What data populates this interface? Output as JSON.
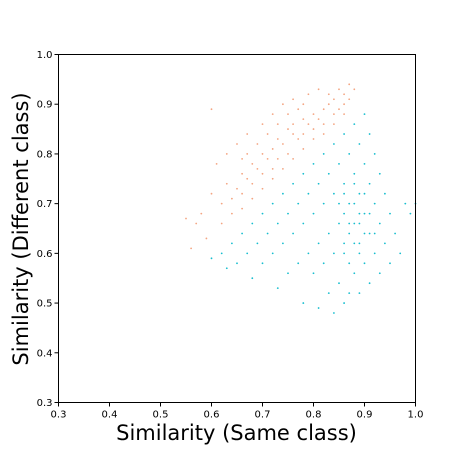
{
  "chart_data": {
    "type": "scatter",
    "title": "",
    "xlabel": "Similarity (Same class)",
    "ylabel": "Similarity (Different class)",
    "xlim": [
      0.3,
      1.0
    ],
    "ylim": [
      0.3,
      1.0
    ],
    "xticks": [
      "0.3",
      "0.4",
      "0.5",
      "0.6",
      "0.7",
      "0.8",
      "0.9",
      "1.0"
    ],
    "yticks": [
      "0.3",
      "0.4",
      "0.5",
      "0.6",
      "0.7",
      "0.8",
      "0.9",
      "1.0"
    ],
    "grid": false,
    "legend": "none",
    "series": [
      {
        "color": "#f4a582",
        "description_points": "dense cloud above the diagonal y = x",
        "points": [
          [
            0.6,
            0.72
          ],
          [
            0.62,
            0.7
          ],
          [
            0.63,
            0.74
          ],
          [
            0.64,
            0.71
          ],
          [
            0.65,
            0.73
          ],
          [
            0.66,
            0.76
          ],
          [
            0.66,
            0.72
          ],
          [
            0.67,
            0.75
          ],
          [
            0.68,
            0.78
          ],
          [
            0.68,
            0.74
          ],
          [
            0.69,
            0.77
          ],
          [
            0.7,
            0.8
          ],
          [
            0.7,
            0.76
          ],
          [
            0.71,
            0.79
          ],
          [
            0.72,
            0.81
          ],
          [
            0.72,
            0.77
          ],
          [
            0.73,
            0.83
          ],
          [
            0.73,
            0.79
          ],
          [
            0.74,
            0.82
          ],
          [
            0.75,
            0.85
          ],
          [
            0.75,
            0.8
          ],
          [
            0.76,
            0.84
          ],
          [
            0.76,
            0.86
          ],
          [
            0.77,
            0.83
          ],
          [
            0.78,
            0.87
          ],
          [
            0.78,
            0.84
          ],
          [
            0.79,
            0.86
          ],
          [
            0.8,
            0.88
          ],
          [
            0.8,
            0.85
          ],
          [
            0.81,
            0.87
          ],
          [
            0.82,
            0.89
          ],
          [
            0.82,
            0.86
          ],
          [
            0.83,
            0.9
          ],
          [
            0.84,
            0.88
          ],
          [
            0.84,
            0.91
          ],
          [
            0.85,
            0.89
          ],
          [
            0.86,
            0.92
          ],
          [
            0.86,
            0.9
          ],
          [
            0.87,
            0.91
          ],
          [
            0.88,
            0.93
          ],
          [
            0.58,
            0.68
          ],
          [
            0.57,
            0.66
          ],
          [
            0.55,
            0.67
          ],
          [
            0.61,
            0.78
          ],
          [
            0.63,
            0.8
          ],
          [
            0.65,
            0.82
          ],
          [
            0.67,
            0.84
          ],
          [
            0.7,
            0.86
          ],
          [
            0.72,
            0.88
          ],
          [
            0.74,
            0.9
          ],
          [
            0.76,
            0.91
          ],
          [
            0.79,
            0.92
          ],
          [
            0.81,
            0.93
          ],
          [
            0.62,
            0.66
          ],
          [
            0.64,
            0.68
          ],
          [
            0.66,
            0.69
          ],
          [
            0.68,
            0.71
          ],
          [
            0.7,
            0.73
          ],
          [
            0.72,
            0.75
          ],
          [
            0.74,
            0.77
          ],
          [
            0.76,
            0.79
          ],
          [
            0.78,
            0.81
          ],
          [
            0.8,
            0.83
          ],
          [
            0.82,
            0.84
          ],
          [
            0.84,
            0.86
          ],
          [
            0.86,
            0.88
          ],
          [
            0.59,
            0.63
          ],
          [
            0.56,
            0.61
          ],
          [
            0.6,
            0.89
          ],
          [
            0.67,
            0.8
          ],
          [
            0.69,
            0.82
          ],
          [
            0.71,
            0.84
          ],
          [
            0.73,
            0.86
          ],
          [
            0.75,
            0.88
          ],
          [
            0.77,
            0.89
          ],
          [
            0.78,
            0.9
          ],
          [
            0.83,
            0.92
          ],
          [
            0.85,
            0.93
          ],
          [
            0.87,
            0.94
          ],
          [
            0.66,
            0.79
          ]
        ]
      },
      {
        "color": "#17becf",
        "description_points": "dense cloud below the diagonal, concentrated near x = 0.85–0.92",
        "points": [
          [
            0.62,
            0.6
          ],
          [
            0.64,
            0.62
          ],
          [
            0.65,
            0.58
          ],
          [
            0.66,
            0.64
          ],
          [
            0.67,
            0.6
          ],
          [
            0.68,
            0.66
          ],
          [
            0.69,
            0.62
          ],
          [
            0.7,
            0.68
          ],
          [
            0.7,
            0.58
          ],
          [
            0.71,
            0.64
          ],
          [
            0.72,
            0.7
          ],
          [
            0.72,
            0.6
          ],
          [
            0.73,
            0.66
          ],
          [
            0.74,
            0.72
          ],
          [
            0.74,
            0.62
          ],
          [
            0.75,
            0.68
          ],
          [
            0.75,
            0.56
          ],
          [
            0.76,
            0.74
          ],
          [
            0.76,
            0.64
          ],
          [
            0.77,
            0.7
          ],
          [
            0.77,
            0.58
          ],
          [
            0.78,
            0.76
          ],
          [
            0.78,
            0.66
          ],
          [
            0.79,
            0.72
          ],
          [
            0.79,
            0.6
          ],
          [
            0.8,
            0.78
          ],
          [
            0.8,
            0.68
          ],
          [
            0.8,
            0.56
          ],
          [
            0.81,
            0.74
          ],
          [
            0.81,
            0.62
          ],
          [
            0.82,
            0.8
          ],
          [
            0.82,
            0.7
          ],
          [
            0.82,
            0.58
          ],
          [
            0.83,
            0.76
          ],
          [
            0.83,
            0.64
          ],
          [
            0.83,
            0.52
          ],
          [
            0.84,
            0.82
          ],
          [
            0.84,
            0.72
          ],
          [
            0.84,
            0.6
          ],
          [
            0.85,
            0.78
          ],
          [
            0.85,
            0.66
          ],
          [
            0.85,
            0.54
          ],
          [
            0.86,
            0.84
          ],
          [
            0.86,
            0.74
          ],
          [
            0.86,
            0.62
          ],
          [
            0.86,
            0.5
          ],
          [
            0.87,
            0.8
          ],
          [
            0.87,
            0.7
          ],
          [
            0.87,
            0.58
          ],
          [
            0.88,
            0.86
          ],
          [
            0.88,
            0.76
          ],
          [
            0.88,
            0.66
          ],
          [
            0.88,
            0.56
          ],
          [
            0.89,
            0.82
          ],
          [
            0.89,
            0.72
          ],
          [
            0.89,
            0.62
          ],
          [
            0.89,
            0.52
          ],
          [
            0.9,
            0.88
          ],
          [
            0.9,
            0.78
          ],
          [
            0.9,
            0.68
          ],
          [
            0.9,
            0.58
          ],
          [
            0.91,
            0.84
          ],
          [
            0.91,
            0.74
          ],
          [
            0.91,
            0.64
          ],
          [
            0.91,
            0.54
          ],
          [
            0.92,
            0.8
          ],
          [
            0.92,
            0.7
          ],
          [
            0.92,
            0.6
          ],
          [
            0.93,
            0.76
          ],
          [
            0.93,
            0.66
          ],
          [
            0.93,
            0.56
          ],
          [
            0.94,
            0.72
          ],
          [
            0.94,
            0.62
          ],
          [
            0.95,
            0.68
          ],
          [
            0.95,
            0.58
          ],
          [
            0.96,
            0.64
          ],
          [
            0.97,
            0.6
          ],
          [
            0.98,
            0.7
          ],
          [
            0.99,
            0.68
          ],
          [
            1.0,
            0.7
          ],
          [
            0.6,
            0.59
          ],
          [
            0.63,
            0.57
          ],
          [
            0.68,
            0.55
          ],
          [
            0.73,
            0.53
          ],
          [
            0.78,
            0.5
          ],
          [
            0.81,
            0.49
          ],
          [
            0.84,
            0.48
          ],
          [
            0.87,
            0.52
          ],
          [
            0.86,
            0.68
          ],
          [
            0.87,
            0.64
          ],
          [
            0.88,
            0.7
          ],
          [
            0.89,
            0.66
          ],
          [
            0.9,
            0.64
          ],
          [
            0.88,
            0.62
          ],
          [
            0.87,
            0.66
          ],
          [
            0.89,
            0.6
          ],
          [
            0.86,
            0.72
          ],
          [
            0.9,
            0.72
          ],
          [
            0.88,
            0.74
          ],
          [
            0.91,
            0.68
          ],
          [
            0.85,
            0.7
          ],
          [
            0.92,
            0.64
          ],
          [
            0.86,
            0.6
          ],
          [
            0.89,
            0.68
          ]
        ]
      }
    ]
  }
}
